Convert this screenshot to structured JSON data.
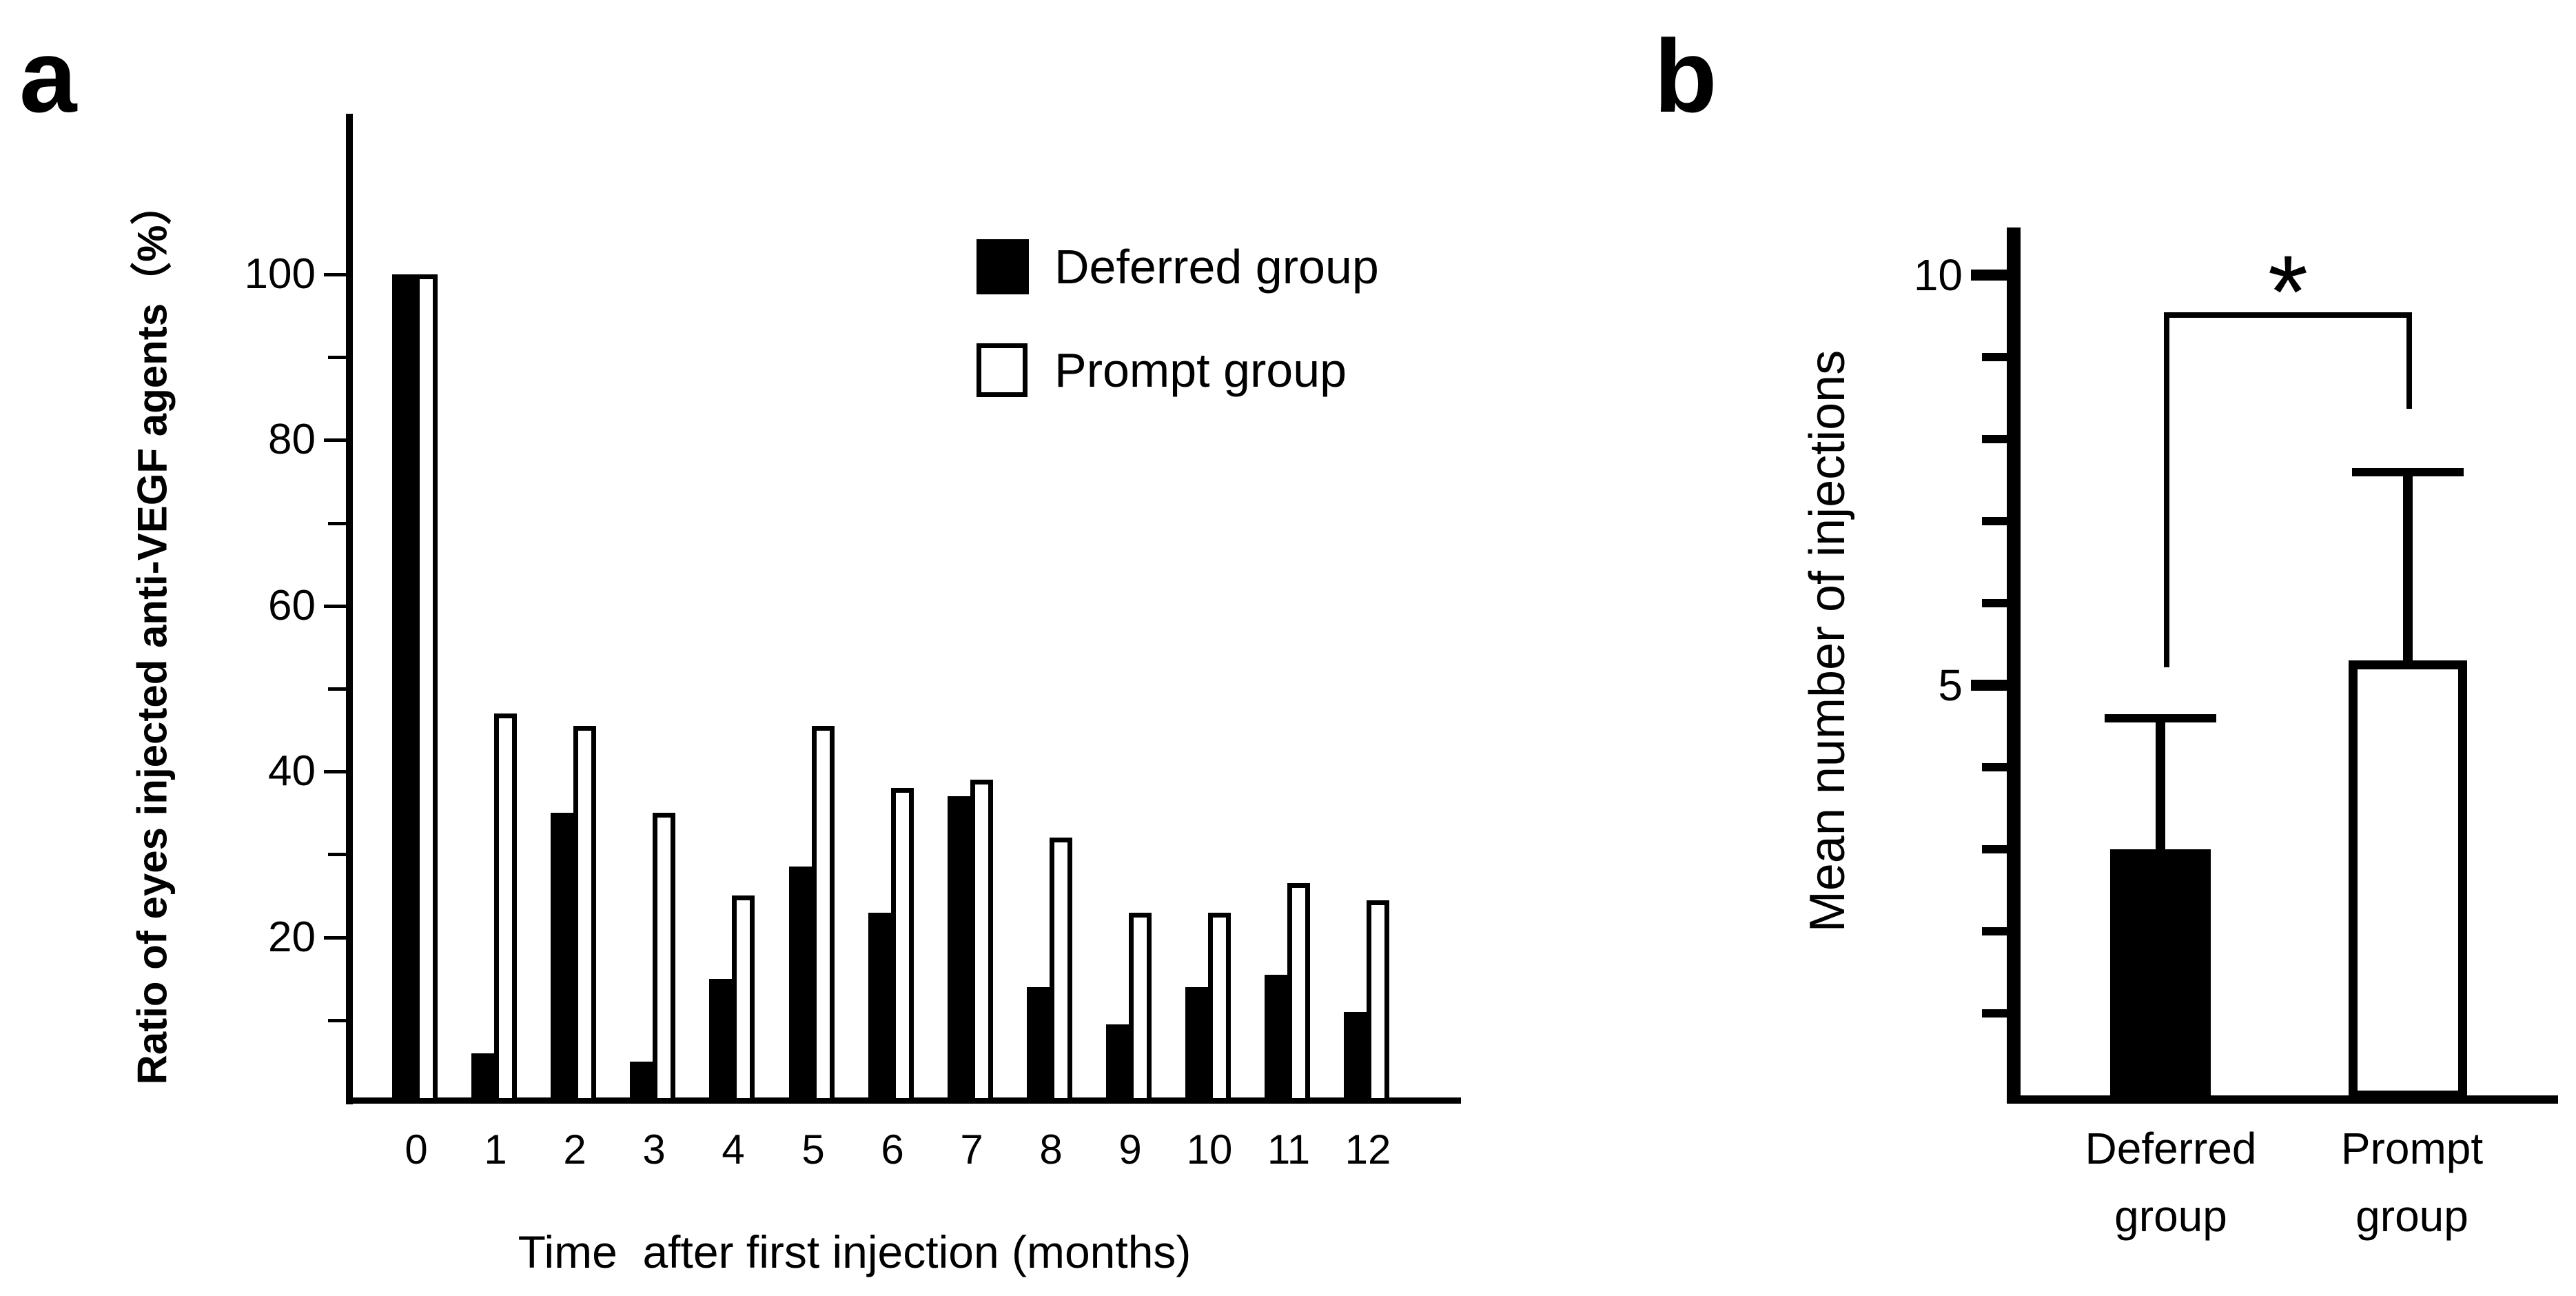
{
  "figure": {
    "panel_a_label": "a",
    "panel_b_label": "b"
  },
  "chart_data": [
    {
      "id": "a",
      "type": "bar",
      "title": "",
      "xlabel": "Time  after first injection (months)",
      "ylabel": "Ratio of eyes injected anti-VEGF agents（%）",
      "categories": [
        "0",
        "1",
        "2",
        "3",
        "4",
        "5",
        "6",
        "7",
        "8",
        "9",
        "10",
        "11",
        "12"
      ],
      "series": [
        {
          "name": "Deferred group",
          "fill": "#000000",
          "values": [
            100,
            6,
            35,
            5,
            15,
            28.5,
            23,
            37,
            14,
            9.5,
            14,
            15.5,
            11
          ]
        },
        {
          "name": "Prompt group",
          "fill": "#ffffff",
          "values": [
            100,
            47,
            45.5,
            35,
            25,
            45.5,
            38,
            39,
            32,
            23,
            23,
            26.5,
            24.5
          ]
        }
      ],
      "ylim": [
        0,
        119
      ],
      "y_tick_step": 10,
      "y_tick_labels": [
        {
          "value": 100,
          "text": "100"
        },
        {
          "value": 80,
          "text": "80"
        },
        {
          "value": 60,
          "text": "60"
        },
        {
          "value": 40,
          "text": "40"
        },
        {
          "value": 20,
          "text": "20"
        }
      ],
      "grid": false,
      "legend_position": "upper-right-inside"
    },
    {
      "id": "b",
      "type": "bar",
      "title": "",
      "xlabel": "",
      "ylabel": "Mean number of injections",
      "categories": [
        {
          "line1": "Deferred",
          "line2": "group"
        },
        {
          "line1": "Prompt",
          "line2": "group"
        }
      ],
      "values": [
        3.0,
        5.3
      ],
      "errors_plus": [
        1.6,
        2.3
      ],
      "bar_fills": [
        "#000000",
        "#ffffff"
      ],
      "ylim": [
        0,
        10.6
      ],
      "y_tick_step": 1,
      "y_tick_labels": [
        {
          "value": 10,
          "text": "10"
        },
        {
          "value": 5,
          "text": "5"
        }
      ],
      "significance": {
        "symbol": "*"
      },
      "grid": false
    }
  ],
  "colors": {
    "foreground": "#000000",
    "background": "#ffffff"
  }
}
